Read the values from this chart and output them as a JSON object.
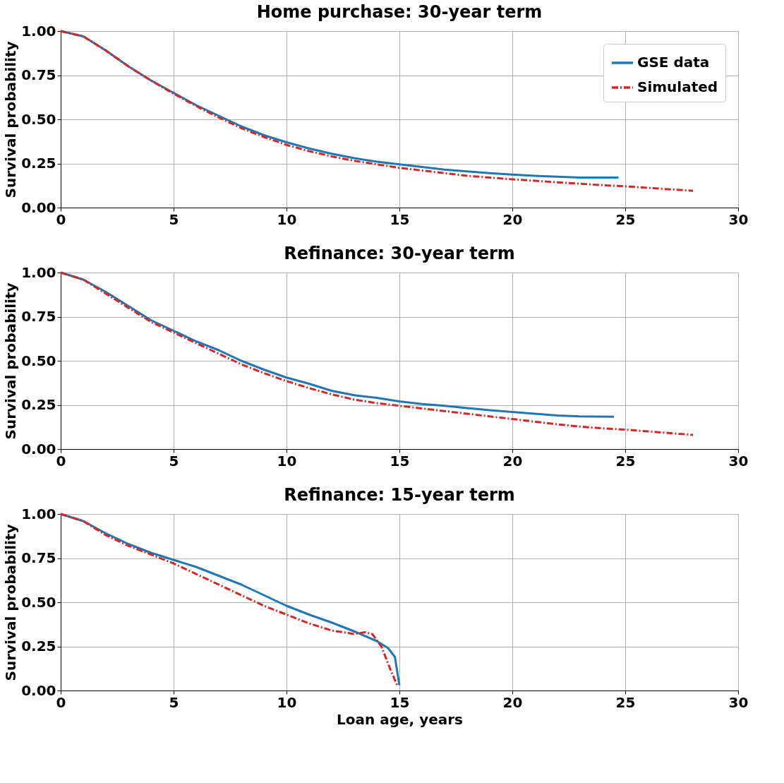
{
  "chart_data": [
    {
      "type": "line",
      "title": "Home purchase: 30-year term",
      "ylabel": "Survival probability",
      "xlim": [
        0,
        30
      ],
      "xticks": [
        0,
        5,
        10,
        15,
        20,
        25,
        30
      ],
      "ylim": [
        0,
        1
      ],
      "yticks": [
        {
          "value": 0,
          "label": "0.00"
        },
        {
          "value": 0.25,
          "label": "0.25"
        },
        {
          "value": 0.5,
          "label": "0.50"
        },
        {
          "value": 0.75,
          "label": "0.75"
        },
        {
          "value": 1,
          "label": "1.00"
        }
      ],
      "grid": true,
      "legend": "top right",
      "series": [
        {
          "name": "GSE data",
          "color": "#1f77b4",
          "line_style": "solid",
          "x": [
            0,
            1,
            2,
            3,
            4,
            5,
            6,
            7,
            8,
            9,
            10,
            11,
            12,
            13,
            14,
            15,
            16,
            17,
            18,
            19,
            20,
            21,
            22,
            23,
            24,
            24.7
          ],
          "values": [
            1.0,
            0.97,
            0.89,
            0.8,
            0.72,
            0.65,
            0.58,
            0.52,
            0.46,
            0.41,
            0.37,
            0.335,
            0.305,
            0.28,
            0.26,
            0.245,
            0.23,
            0.215,
            0.205,
            0.195,
            0.187,
            0.18,
            0.175,
            0.17,
            0.17,
            0.17
          ]
        },
        {
          "name": "Simulated",
          "color": "#d62728",
          "line_style": "dashed",
          "x": [
            0,
            1,
            2,
            3,
            4,
            5,
            6,
            7,
            8,
            9,
            10,
            11,
            12,
            13,
            14,
            15,
            16,
            17,
            18,
            19,
            20,
            21,
            22,
            23,
            24,
            25,
            26,
            27,
            28
          ],
          "values": [
            1.0,
            0.97,
            0.89,
            0.8,
            0.72,
            0.645,
            0.575,
            0.51,
            0.45,
            0.4,
            0.355,
            0.32,
            0.29,
            0.265,
            0.245,
            0.225,
            0.21,
            0.195,
            0.18,
            0.17,
            0.16,
            0.152,
            0.143,
            0.135,
            0.127,
            0.12,
            0.112,
            0.103,
            0.095
          ]
        }
      ]
    },
    {
      "type": "line",
      "title": "Refinance: 30-year term",
      "ylabel": "Survival probability",
      "xlim": [
        0,
        30
      ],
      "xticks": [
        0,
        5,
        10,
        15,
        20,
        25,
        30
      ],
      "ylim": [
        0,
        1
      ],
      "yticks": [
        {
          "value": 0,
          "label": "0.00"
        },
        {
          "value": 0.25,
          "label": "0.25"
        },
        {
          "value": 0.5,
          "label": "0.50"
        },
        {
          "value": 0.75,
          "label": "0.75"
        },
        {
          "value": 1,
          "label": "1.00"
        }
      ],
      "grid": true,
      "series": [
        {
          "color": "#1f77b4",
          "line_style": "solid",
          "x": [
            0,
            1,
            2,
            3,
            4,
            5,
            6,
            7,
            8,
            9,
            10,
            11,
            12,
            13,
            14,
            15,
            16,
            17,
            18,
            19,
            20,
            21,
            22,
            23,
            24.5
          ],
          "values": [
            1.0,
            0.96,
            0.89,
            0.81,
            0.73,
            0.67,
            0.61,
            0.56,
            0.5,
            0.45,
            0.405,
            0.37,
            0.33,
            0.305,
            0.29,
            0.27,
            0.255,
            0.245,
            0.232,
            0.22,
            0.21,
            0.2,
            0.19,
            0.185,
            0.183
          ]
        },
        {
          "color": "#d62728",
          "line_style": "dashed",
          "x": [
            0,
            1,
            2,
            3,
            4,
            5,
            6,
            7,
            8,
            9,
            10,
            11,
            12,
            13,
            14,
            15,
            16,
            17,
            18,
            19,
            20,
            21,
            22,
            23,
            24,
            25,
            26,
            27,
            28
          ],
          "values": [
            1.0,
            0.96,
            0.88,
            0.8,
            0.72,
            0.66,
            0.6,
            0.54,
            0.48,
            0.43,
            0.385,
            0.345,
            0.31,
            0.28,
            0.26,
            0.245,
            0.23,
            0.215,
            0.2,
            0.185,
            0.17,
            0.155,
            0.14,
            0.127,
            0.117,
            0.11,
            0.1,
            0.09,
            0.08
          ]
        }
      ]
    },
    {
      "type": "line",
      "title": "Refinance: 15-year term",
      "xlabel": "Loan age, years",
      "ylabel": "Survival probability",
      "xlim": [
        0,
        30
      ],
      "xticks": [
        0,
        5,
        10,
        15,
        20,
        25,
        30
      ],
      "ylim": [
        0,
        1
      ],
      "yticks": [
        {
          "value": 0,
          "label": "0.00"
        },
        {
          "value": 0.25,
          "label": "0.25"
        },
        {
          "value": 0.5,
          "label": "0.50"
        },
        {
          "value": 0.75,
          "label": "0.75"
        },
        {
          "value": 1,
          "label": "1.00"
        }
      ],
      "grid": true,
      "series": [
        {
          "color": "#1f77b4",
          "line_style": "solid",
          "x": [
            0,
            1,
            2,
            3,
            4,
            5,
            6,
            7,
            8,
            9,
            10,
            11,
            12,
            13,
            14,
            14.5,
            14.8,
            15
          ],
          "values": [
            1.0,
            0.96,
            0.89,
            0.83,
            0.78,
            0.74,
            0.7,
            0.65,
            0.6,
            0.54,
            0.48,
            0.43,
            0.385,
            0.335,
            0.28,
            0.24,
            0.19,
            0.03
          ]
        },
        {
          "color": "#d62728",
          "line_style": "dashed",
          "x": [
            0,
            1,
            2,
            3,
            4,
            5,
            6,
            7,
            8,
            9,
            10,
            11,
            12,
            13,
            13.5,
            13.8,
            14.2,
            14.6,
            14.9
          ],
          "values": [
            1.0,
            0.96,
            0.88,
            0.82,
            0.77,
            0.72,
            0.66,
            0.6,
            0.54,
            0.48,
            0.43,
            0.38,
            0.34,
            0.32,
            0.33,
            0.32,
            0.25,
            0.12,
            0.03
          ]
        }
      ]
    }
  ]
}
